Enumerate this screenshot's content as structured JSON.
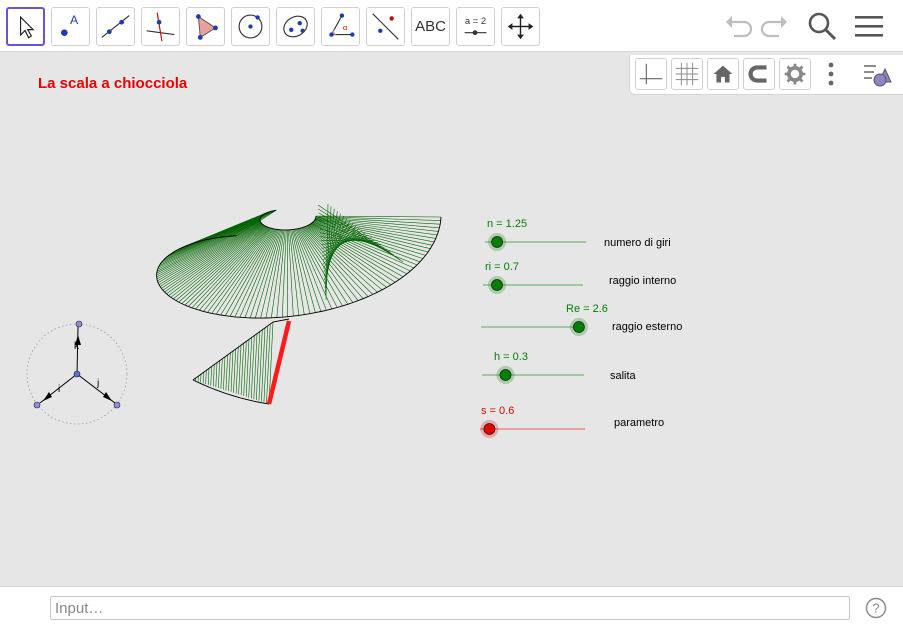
{
  "toolbar": {
    "tools": [
      {
        "name": "move-tool",
        "icon": "arrow-pointer-icon"
      },
      {
        "name": "point-tool",
        "icon": "point-icon"
      },
      {
        "name": "line-tool",
        "icon": "line-icon"
      },
      {
        "name": "perpendicular-tool",
        "icon": "perpendicular-icon"
      },
      {
        "name": "polygon-tool",
        "icon": "polygon-icon"
      },
      {
        "name": "circle-center-point-tool",
        "icon": "circle-icon"
      },
      {
        "name": "ellipse-tool",
        "icon": "ellipse-icon"
      },
      {
        "name": "angle-tool",
        "icon": "angle-icon"
      },
      {
        "name": "reflect-tool",
        "icon": "reflect-icon"
      },
      {
        "name": "text-tool",
        "icon": "text-icon",
        "label": "ABC"
      },
      {
        "name": "slider-tool",
        "icon": "slider-icon",
        "label": "a = 2"
      },
      {
        "name": "move-graphics-tool",
        "icon": "move-arrows-icon"
      }
    ],
    "right_icons": [
      "undo-icon",
      "redo-icon",
      "search-icon",
      "menu-icon"
    ]
  },
  "style_bar": {
    "buttons": [
      "axes-icon",
      "grid-icon",
      "home-icon",
      "magnet-icon",
      "gear-icon",
      "more-vertical-icon",
      "algebra-view-icon"
    ]
  },
  "title": "La scala a chiocciola",
  "sliders": [
    {
      "id": "n",
      "value_text": "n = 1.25",
      "caption": "numero di giri",
      "fraction": 0.12,
      "color": "#008000"
    },
    {
      "id": "ri",
      "value_text": "ri = 0.7",
      "caption": "raggio interno",
      "fraction": 0.14,
      "color": "#008000"
    },
    {
      "id": "Re",
      "value_text": "Re = 2.6",
      "caption": "raggio esterno",
      "fraction": 0.95,
      "color": "#008000"
    },
    {
      "id": "h",
      "value_text": "h = 0.3",
      "caption": "salita",
      "fraction": 0.23,
      "color": "#008000"
    },
    {
      "id": "s",
      "value_text": "s = 0.6",
      "caption": "parametro",
      "fraction": 0.09,
      "color": "#e60000"
    }
  ],
  "axes_widget": {
    "labels": [
      "k",
      "i",
      "j"
    ]
  },
  "input": {
    "placeholder": "Input…"
  },
  "colors": {
    "accent": "#6557d2",
    "title": "#e60000",
    "slider_green": "#008000",
    "slider_red": "#e60000",
    "surface_lines": "#006400"
  }
}
